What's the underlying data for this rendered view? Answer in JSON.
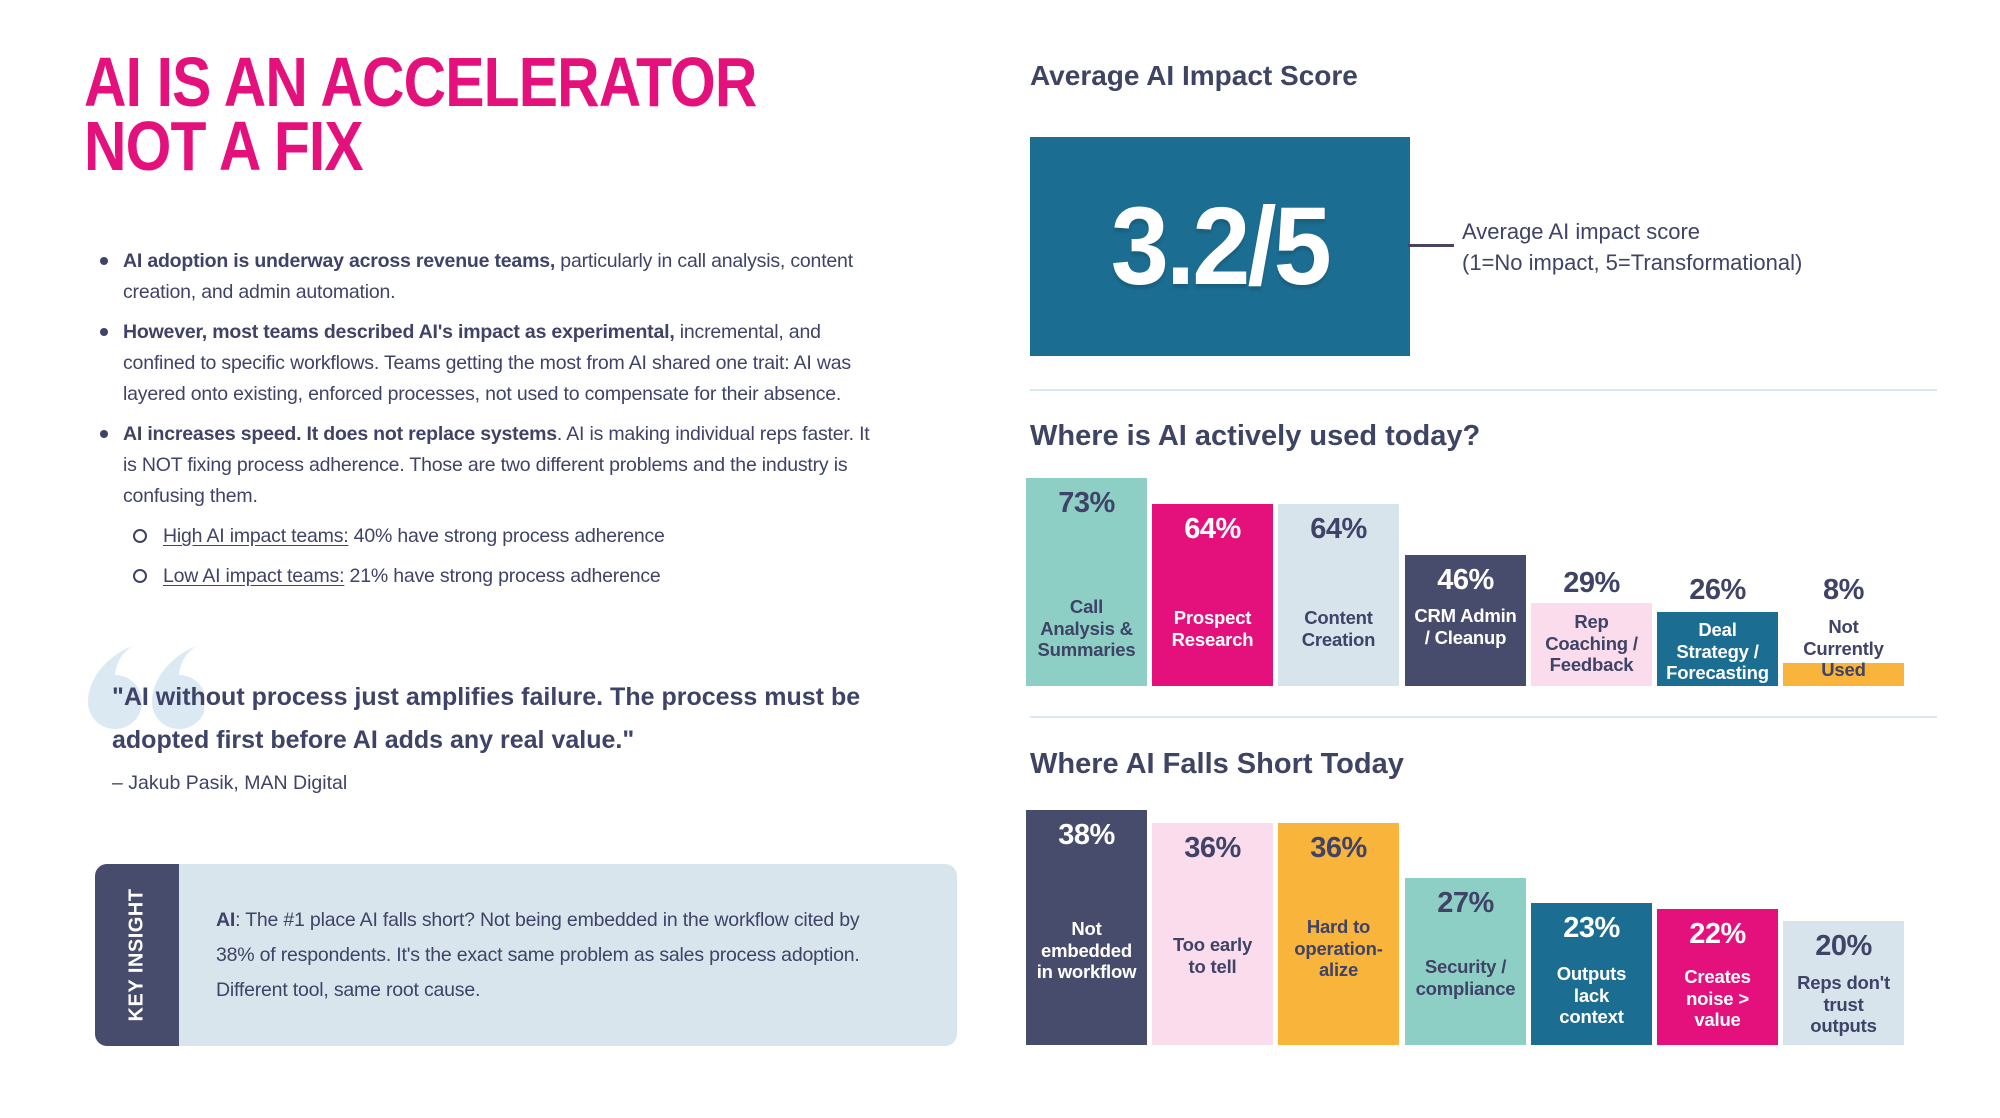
{
  "title": {
    "line1": "AI IS AN ACCELERATOR",
    "line2": "NOT A FIX"
  },
  "bullets": [
    {
      "segments": [
        {
          "t": "AI adoption is underway across revenue teams,",
          "b": true
        },
        {
          "t": " particularly in call analysis, content creation, and admin automation."
        }
      ]
    },
    {
      "segments": [
        {
          "t": "However, most teams described AI's impact as experimental,",
          "b": true
        },
        {
          "t": " incremental, and confined to specific workflows. Teams getting the most from AI shared one trait: AI was layered onto existing, enforced processes, not used to compensate for their absence."
        }
      ]
    },
    {
      "segments": [
        {
          "t": "AI increases speed. It does not replace systems",
          "b": true
        },
        {
          "t": ". AI is making individual reps faster. It is NOT fixing process adherence. Those are two different problems and the industry is confusing them."
        }
      ]
    }
  ],
  "sub_bullets": [
    {
      "segments": [
        {
          "t": "High AI impact teams:",
          "u": true
        },
        {
          "t": " 40% have strong process adherence"
        }
      ]
    },
    {
      "segments": [
        {
          "t": "Low AI impact teams:",
          "u": true
        },
        {
          "t": " 21% have strong process adherence"
        }
      ]
    }
  ],
  "quote": {
    "text": "\"AI without process just amplifies failure. The process must be adopted first before AI adds any real value.\"",
    "attribution": "– Jakub Pasik, MAN Digital"
  },
  "key_insight": {
    "tab": "KEY INSIGHT",
    "segments": [
      {
        "t": "AI",
        "b": true
      },
      {
        "t": ": The #1 place AI falls short? Not being embedded in the workflow cited by 38% of respondents. It's the exact same problem as sales process adoption. Different tool, same root cause."
      }
    ]
  },
  "impact_score": {
    "heading": "Average AI Impact Score",
    "value": "3.2/5",
    "annotation_line1": "Average AI impact score",
    "annotation_line2": "(1=No impact, 5=Transformational)"
  },
  "colors": {
    "accent_magenta": "#E4117C",
    "navy_text": "#3E4367",
    "navy_bar": "#474C6C",
    "seafoam": "#8DCFC5",
    "light_blue": "#D8E4EC",
    "light_pink": "#FBDCEC",
    "teal": "#1C6D92",
    "orange": "#F9B43C",
    "divider": "#DCE8F0",
    "quote_mark": "#DBE9F2",
    "insight_bg": "#D9E5EC"
  },
  "chart_data": [
    {
      "type": "bar",
      "title": "Where is AI actively used today?",
      "unit": "%",
      "ylim": [
        0,
        100
      ],
      "grid": false,
      "categories": [
        "Call Analysis & Summaries",
        "Prospect Research",
        "Content Creation",
        "CRM Admin / Cleanup",
        "Rep Coaching / Feedback",
        "Deal Strategy / Forecasting",
        "Not Currently Used"
      ],
      "values": [
        73,
        64,
        64,
        46,
        29,
        26,
        8
      ],
      "bar_colors": [
        "#8DCFC5",
        "#E4117C",
        "#D8E4EC",
        "#474C6C",
        "#FBDCEC",
        "#1C6D92",
        "#F9B43C"
      ],
      "pct_placement": [
        "in",
        "in",
        "in",
        "in",
        "above",
        "above",
        "above"
      ],
      "pct_colors": [
        "#3E4367",
        "#FFFFFF",
        "#3E4367",
        "#FFFFFF",
        "#3E4367",
        "#3E4367",
        "#3E4367"
      ],
      "label_colors": [
        "#3E4367",
        "#FFFFFF",
        "#3E4367",
        "#FFFFFF",
        "#3E4367",
        "#FFFFFF",
        "#3E4367"
      ],
      "label_lines": [
        [
          "Call",
          "Analysis &",
          "Summaries"
        ],
        [
          "Prospect",
          "Research"
        ],
        [
          "Content",
          "Creation"
        ],
        [
          "CRM Admin",
          "/ Cleanup"
        ],
        [
          "Rep",
          "Coaching /",
          "Feedback"
        ],
        [
          "Deal",
          "Strategy /",
          "Forecasting"
        ],
        [
          "Not",
          "Currently",
          "Used"
        ]
      ],
      "label_centers": [
        628,
        628,
        628,
        626,
        643,
        651,
        648
      ]
    },
    {
      "type": "bar",
      "title": "Where AI Falls Short Today",
      "unit": "%",
      "ylim": [
        0,
        100
      ],
      "grid": false,
      "categories": [
        "Not embedded in workflow",
        "Too early to tell",
        "Hard to operation-alize",
        "Security / compliance",
        "Outputs lack context",
        "Creates noise > value",
        "Reps don't trust outputs"
      ],
      "values": [
        38,
        36,
        36,
        27,
        23,
        22,
        20
      ],
      "bar_colors": [
        "#474C6C",
        "#FBDCEC",
        "#F9B43C",
        "#8DCFC5",
        "#1C6D92",
        "#E4117C",
        "#D8E4EC"
      ],
      "pct_placement": [
        "in",
        "in",
        "in",
        "in",
        "in",
        "in",
        "in"
      ],
      "pct_colors": [
        "#FFFFFF",
        "#3E4367",
        "#3E4367",
        "#3E4367",
        "#FFFFFF",
        "#FFFFFF",
        "#3E4367"
      ],
      "label_colors": [
        "#FFFFFF",
        "#3E4367",
        "#3E4367",
        "#3E4367",
        "#FFFFFF",
        "#FFFFFF",
        "#3E4367"
      ],
      "label_lines": [
        [
          "Not",
          "embedded",
          "in workflow"
        ],
        [
          "Too early",
          "to tell"
        ],
        [
          "Hard to",
          "operation-",
          "alize"
        ],
        [
          "Security /",
          "compliance"
        ],
        [
          "Outputs",
          "lack",
          "context"
        ],
        [
          "Creates",
          "noise >",
          "value"
        ],
        [
          "Reps don't",
          "trust",
          "outputs"
        ]
      ],
      "label_centers": [
        950,
        955,
        948,
        977,
        995,
        998,
        1004
      ]
    }
  ]
}
